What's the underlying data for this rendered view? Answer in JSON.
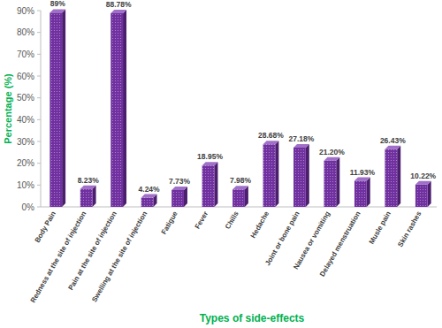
{
  "chart_data": {
    "type": "bar",
    "x_label": "Types of side-effects",
    "y_label": "Percentage (%)",
    "categories": [
      "Body Pain",
      "Redness at the site of injection",
      "Pain at the site of injection",
      "Swelling at the site of injection",
      "Fatigue",
      "Fever",
      "Chills",
      "Hedache",
      "Joint or bone pain",
      "Nausea or vomiting",
      "Delayed menstruation",
      "Musle pain",
      "Skin rashes"
    ],
    "values": [
      89,
      8.23,
      88.78,
      4.24,
      7.73,
      18.95,
      7.98,
      28.68,
      27.18,
      21.2,
      11.93,
      26.43,
      10.22
    ],
    "value_labels": [
      "89%",
      "8.23%",
      "88.78%",
      "4.24%",
      "7.73%",
      "18.95%",
      "7.98%",
      "28.68%",
      "27.18%",
      "21.20%",
      "11.93%",
      "26.43%",
      "10.22%"
    ],
    "color": "#7030a0",
    "ylim": [
      0,
      90
    ],
    "yticks": [
      {
        "value": 0,
        "label": "0%"
      },
      {
        "value": 10,
        "label": "10%"
      },
      {
        "value": 20,
        "label": "20%"
      },
      {
        "value": 30,
        "label": "30%"
      },
      {
        "value": 40,
        "label": "40%"
      },
      {
        "value": 50,
        "label": "50%"
      },
      {
        "value": 60,
        "label": "60%"
      },
      {
        "value": 70,
        "label": "70%"
      },
      {
        "value": 80,
        "label": "80%"
      },
      {
        "value": 90,
        "label": "90%"
      }
    ],
    "grid": false,
    "data_labels": true
  }
}
